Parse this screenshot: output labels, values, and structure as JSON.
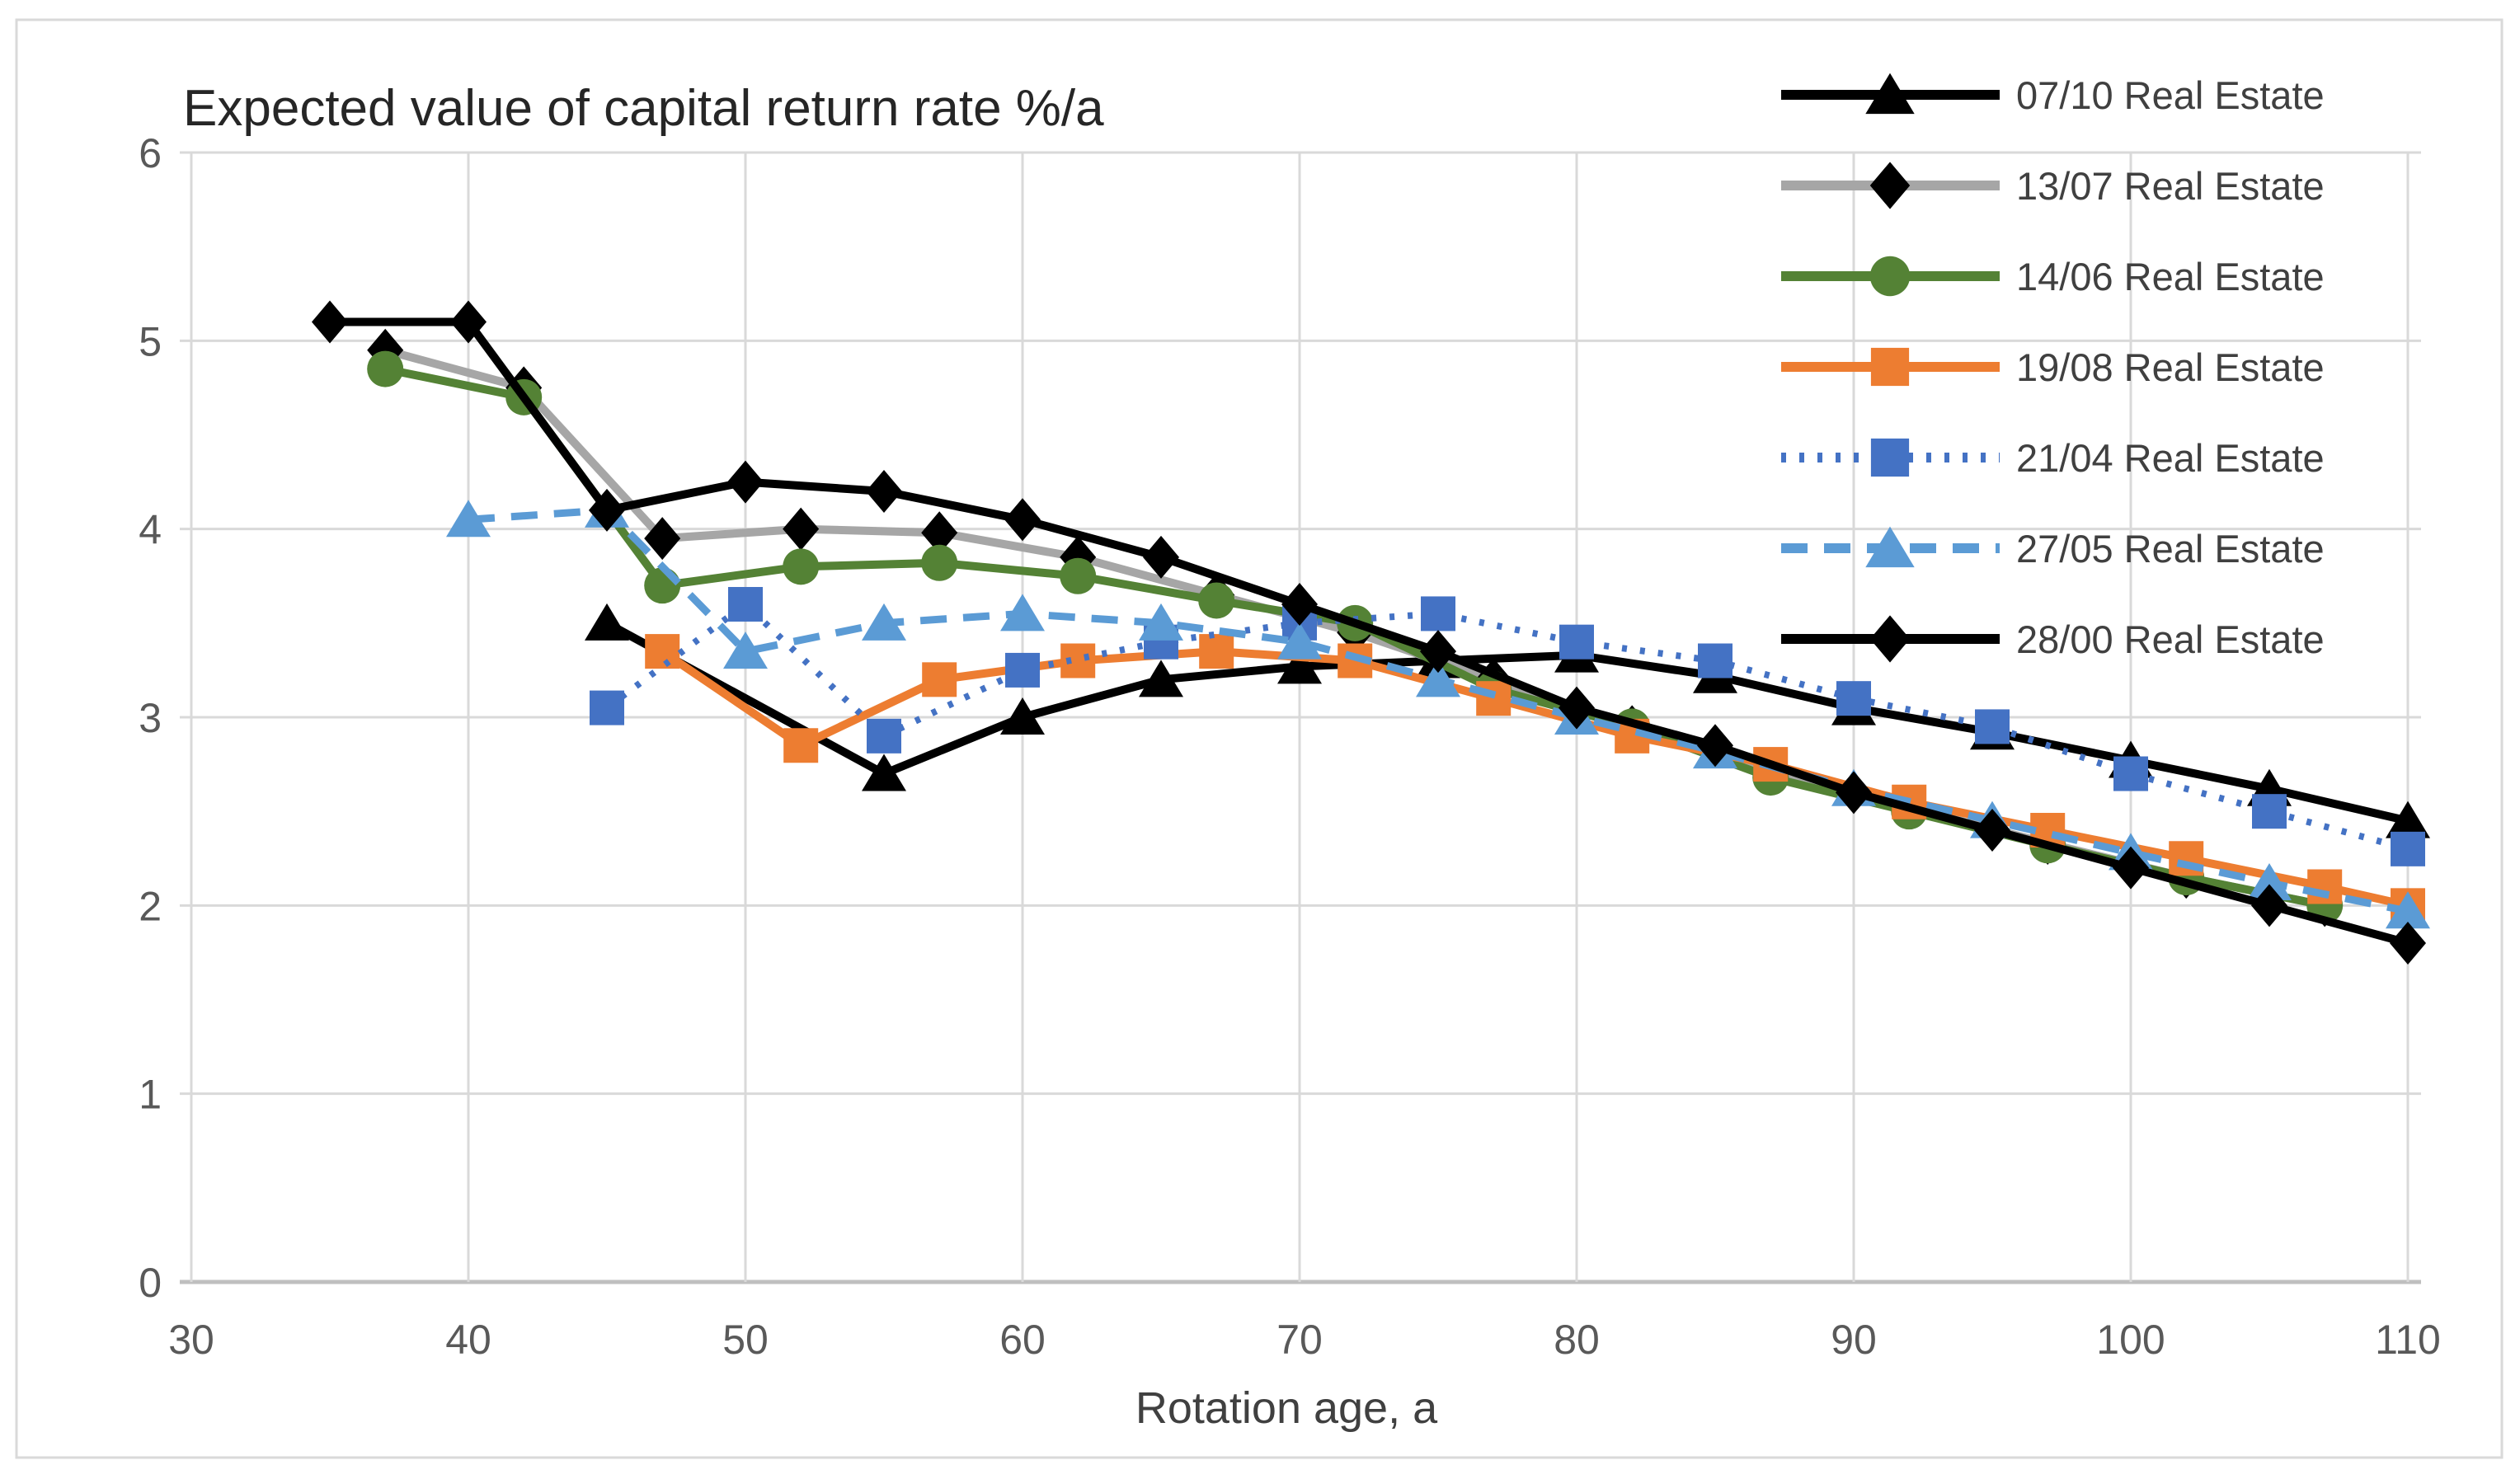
{
  "chart_data": {
    "type": "line",
    "title": "Expected value of capital return rate  %/a",
    "xlabel": "Rotation age, a",
    "ylabel": "",
    "xlim": [
      30,
      110
    ],
    "ylim": [
      0,
      6
    ],
    "x_ticks": [
      30,
      40,
      50,
      60,
      70,
      80,
      90,
      100,
      110
    ],
    "y_ticks": [
      0,
      1,
      2,
      3,
      4,
      5,
      6
    ],
    "grid": true,
    "legend_position": "top-right",
    "colors": {
      "grid": "#D9D9D9",
      "axis": "#BFBFBF",
      "tick_text": "#595959",
      "label_text": "#404040",
      "title_text": "#262626",
      "border": "#D9D9D9"
    },
    "series": [
      {
        "name": "07/10 Real Estate",
        "color": "#000000",
        "marker_color": "#000000",
        "line_style": "solid",
        "marker": "triangle",
        "points": [
          [
            45,
            3.5
          ],
          [
            55,
            2.7
          ],
          [
            60,
            3.0
          ],
          [
            65,
            3.2
          ],
          [
            70,
            3.27
          ],
          [
            75,
            3.3
          ],
          [
            80,
            3.33
          ],
          [
            85,
            3.22
          ],
          [
            90,
            3.05
          ],
          [
            95,
            2.92
          ],
          [
            100,
            2.77
          ],
          [
            105,
            2.62
          ],
          [
            110,
            2.45
          ]
        ]
      },
      {
        "name": "13/07 Real Estate",
        "color": "#A6A6A6",
        "marker_color": "#000000",
        "line_style": "solid",
        "marker": "diamond",
        "points": [
          [
            37,
            4.95
          ],
          [
            42,
            4.75
          ],
          [
            47,
            3.95
          ],
          [
            52,
            4.0
          ],
          [
            57,
            3.98
          ],
          [
            62,
            3.85
          ],
          [
            67,
            3.65
          ],
          [
            72,
            3.45
          ],
          [
            77,
            3.2
          ],
          [
            82,
            2.95
          ],
          [
            87,
            2.72
          ],
          [
            92,
            2.52
          ],
          [
            97,
            2.33
          ],
          [
            102,
            2.15
          ],
          [
            107,
            2.0
          ]
        ]
      },
      {
        "name": "14/06 Real Estate",
        "color": "#548235",
        "marker_color": "#548235",
        "line_style": "solid",
        "marker": "circle",
        "points": [
          [
            37,
            4.85
          ],
          [
            42,
            4.7
          ],
          [
            47,
            3.7
          ],
          [
            52,
            3.8
          ],
          [
            57,
            3.82
          ],
          [
            62,
            3.75
          ],
          [
            67,
            3.62
          ],
          [
            72,
            3.5
          ],
          [
            77,
            3.15
          ],
          [
            82,
            2.95
          ],
          [
            87,
            2.68
          ],
          [
            92,
            2.5
          ],
          [
            97,
            2.32
          ],
          [
            102,
            2.15
          ],
          [
            107,
            2.0
          ]
        ]
      },
      {
        "name": "19/08 Real Estate",
        "color": "#ED7D31",
        "marker_color": "#ED7D31",
        "line_style": "solid",
        "marker": "square",
        "points": [
          [
            47,
            3.35
          ],
          [
            52,
            2.85
          ],
          [
            57,
            3.2
          ],
          [
            62,
            3.3
          ],
          [
            67,
            3.35
          ],
          [
            72,
            3.3
          ],
          [
            77,
            3.1
          ],
          [
            82,
            2.9
          ],
          [
            87,
            2.75
          ],
          [
            92,
            2.55
          ],
          [
            97,
            2.4
          ],
          [
            102,
            2.25
          ],
          [
            107,
            2.1
          ],
          [
            110,
            2.0
          ]
        ]
      },
      {
        "name": "21/04 Real Estate",
        "color": "#4472C4",
        "marker_color": "#4472C4",
        "line_style": "dotted",
        "marker": "square",
        "points": [
          [
            45,
            3.05
          ],
          [
            50,
            3.6
          ],
          [
            55,
            2.9
          ],
          [
            60,
            3.25
          ],
          [
            65,
            3.4
          ],
          [
            70,
            3.5
          ],
          [
            75,
            3.55
          ],
          [
            80,
            3.4
          ],
          [
            85,
            3.3
          ],
          [
            90,
            3.1
          ],
          [
            95,
            2.95
          ],
          [
            100,
            2.7
          ],
          [
            105,
            2.5
          ],
          [
            110,
            2.3
          ]
        ]
      },
      {
        "name": "27/05 Real Estate",
        "color": "#5B9BD5",
        "marker_color": "#5B9BD5",
        "line_style": "dashed",
        "marker": "triangle",
        "points": [
          [
            40,
            4.05
          ],
          [
            45,
            4.1
          ],
          [
            50,
            3.35
          ],
          [
            55,
            3.5
          ],
          [
            60,
            3.55
          ],
          [
            65,
            3.5
          ],
          [
            70,
            3.4
          ],
          [
            75,
            3.2
          ],
          [
            80,
            3.0
          ],
          [
            85,
            2.82
          ],
          [
            90,
            2.62
          ],
          [
            95,
            2.45
          ],
          [
            100,
            2.28
          ],
          [
            105,
            2.12
          ],
          [
            110,
            1.97
          ]
        ]
      },
      {
        "name": "28/00 Real Estate",
        "color": "#000000",
        "marker_color": "#000000",
        "line_style": "solid",
        "marker": "diamond",
        "points": [
          [
            35,
            5.1
          ],
          [
            40,
            5.1
          ],
          [
            45,
            4.1
          ],
          [
            50,
            4.25
          ],
          [
            55,
            4.2
          ],
          [
            60,
            4.05
          ],
          [
            65,
            3.85
          ],
          [
            70,
            3.6
          ],
          [
            75,
            3.35
          ],
          [
            80,
            3.05
          ],
          [
            85,
            2.85
          ],
          [
            90,
            2.6
          ],
          [
            95,
            2.4
          ],
          [
            100,
            2.2
          ],
          [
            105,
            2.0
          ],
          [
            110,
            1.8
          ]
        ]
      }
    ]
  }
}
